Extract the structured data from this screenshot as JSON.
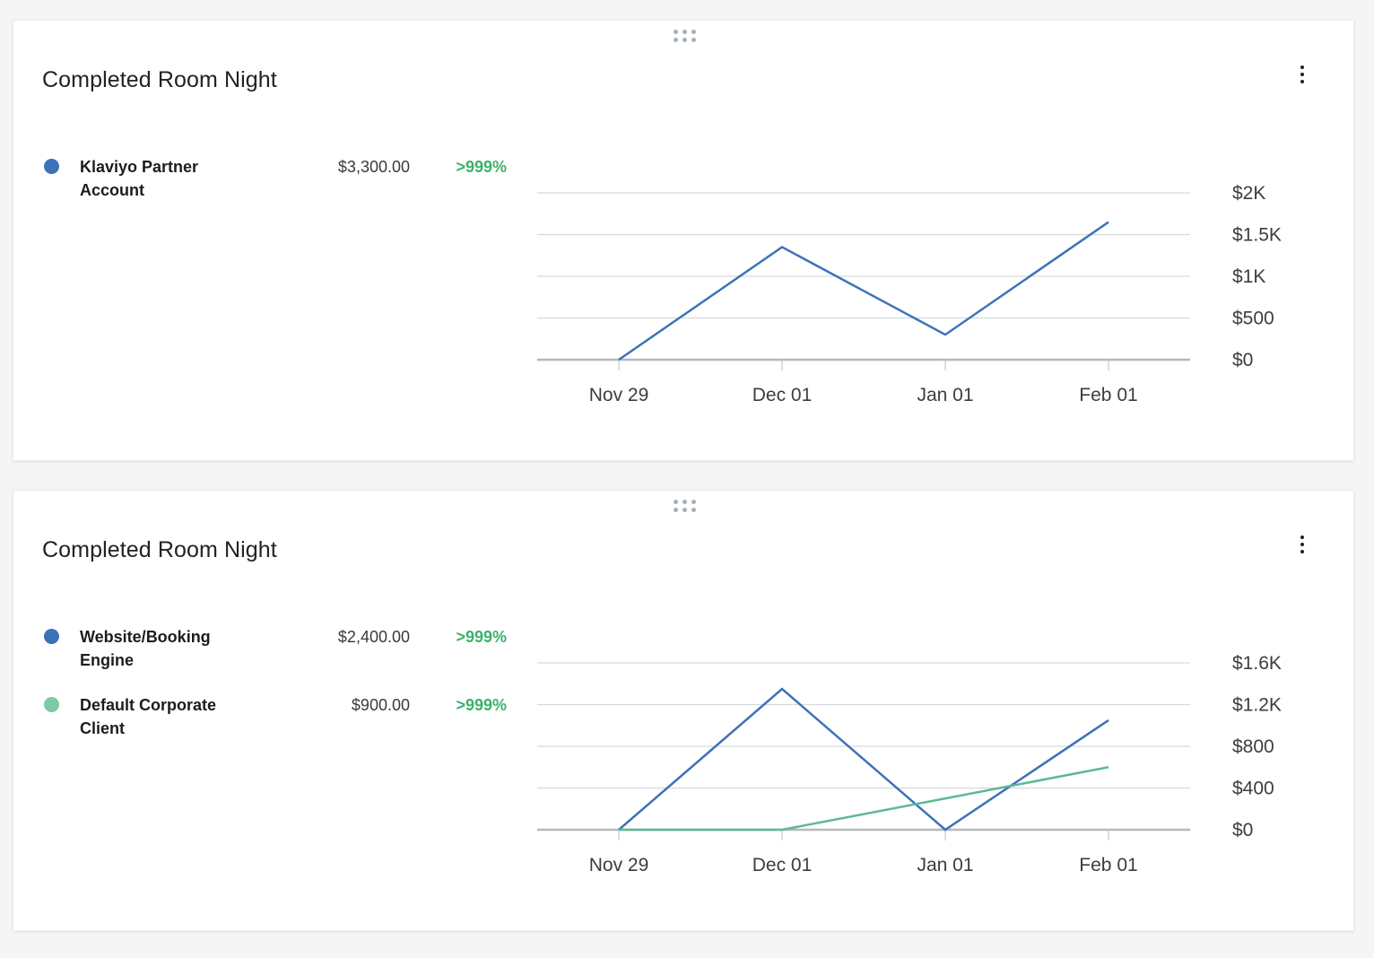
{
  "cards": [
    {
      "title": "Completed Room Night",
      "legend": [
        {
          "name": "Klaviyo Partner Account",
          "value": "$3,300.00",
          "change": ">999%",
          "color": "#3d72b9"
        }
      ],
      "chart_data": {
        "type": "line",
        "categories": [
          "Nov 29",
          "Dec 01",
          "Jan 01",
          "Feb 01"
        ],
        "y_tick_labels": [
          "$2K",
          "$1.5K",
          "$1K",
          "$500",
          "$0"
        ],
        "ylim": [
          0,
          2000
        ],
        "y_axis_side": "right",
        "grid": true,
        "series": [
          {
            "name": "Klaviyo Partner Account",
            "color": "#3d72b9",
            "values": [
              0,
              1350,
              300,
              1650
            ]
          }
        ]
      }
    },
    {
      "title": "Completed Room Night",
      "legend": [
        {
          "name": "Website/Booking Engine",
          "value": "$2,400.00",
          "change": ">999%",
          "color": "#3d72b9"
        },
        {
          "name": "Default Corporate Client",
          "value": "$900.00",
          "change": ">999%",
          "color": "#7ccaa7"
        }
      ],
      "chart_data": {
        "type": "line",
        "categories": [
          "Nov 29",
          "Dec 01",
          "Jan 01",
          "Feb 01"
        ],
        "y_tick_labels": [
          "$1.6K",
          "$1.2K",
          "$800",
          "$400",
          "$0"
        ],
        "ylim": [
          0,
          1600
        ],
        "y_axis_side": "right",
        "grid": true,
        "series": [
          {
            "name": "Website/Booking Engine",
            "color": "#3d72b9",
            "values": [
              0,
              1350,
              0,
              1050
            ]
          },
          {
            "name": "Default Corporate Client",
            "color": "#5cb896",
            "values": [
              0,
              0,
              300,
              600
            ]
          }
        ]
      }
    }
  ]
}
